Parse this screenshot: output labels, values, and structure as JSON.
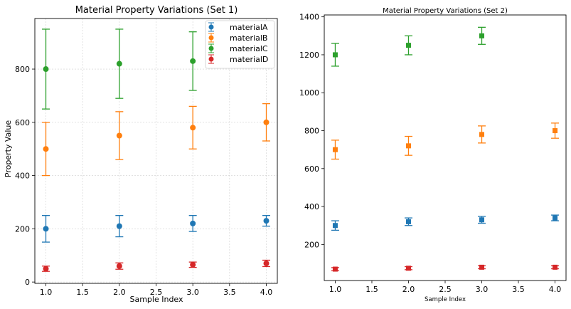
{
  "chart_data": [
    {
      "type": "scatter",
      "title": "Material Property Variations (Set 1)",
      "xlabel": "Sample Index",
      "ylabel": "Property Value",
      "xlim": [
        0.85,
        4.15
      ],
      "ylim": [
        -5,
        990
      ],
      "xticks": [
        "1.0",
        "1.5",
        "2.0",
        "2.5",
        "3.0",
        "3.5",
        "4.0"
      ],
      "xtick_values": [
        1.0,
        1.5,
        2.0,
        2.5,
        3.0,
        3.5,
        4.0
      ],
      "yticks": [
        "0",
        "200",
        "400",
        "600",
        "800"
      ],
      "ytick_values": [
        0,
        200,
        400,
        600,
        800
      ],
      "grid": true,
      "legend": "top-right",
      "marker": "circle",
      "series": [
        {
          "name": "materialA",
          "color": "#1f77b4",
          "x": [
            1,
            2,
            3,
            4
          ],
          "y": [
            200,
            210,
            220,
            230
          ],
          "err": [
            50,
            40,
            30,
            20
          ]
        },
        {
          "name": "materialB",
          "color": "#ff7f0e",
          "x": [
            1,
            2,
            3
          ],
          "y": [
            500,
            550,
            580
          ],
          "err": [
            100,
            90,
            80
          ]
        },
        {
          "name": "materialC",
          "color": "#2ca02c",
          "x": [
            1,
            2,
            3
          ],
          "y": [
            800,
            820,
            830
          ],
          "err": [
            150,
            130,
            110
          ]
        },
        {
          "name": "materialD",
          "color": "#d62728",
          "x": [
            1,
            2,
            3,
            4
          ],
          "y": [
            50,
            60,
            65,
            70
          ],
          "err": [
            10,
            12,
            10,
            12
          ]
        },
        {
          "name": "",
          "color": "#ff7f0e",
          "x": [
            4
          ],
          "y": [
            600
          ],
          "err": [
            70
          ]
        }
      ]
    },
    {
      "type": "scatter",
      "title": "Material Property Variations (Set 2)",
      "xlabel": "Sample Index",
      "ylabel": "",
      "xlim": [
        0.85,
        4.15
      ],
      "ylim": [
        10,
        1410
      ],
      "xticks": [
        "1.0",
        "1.5",
        "2.0",
        "2.5",
        "3.0",
        "3.5",
        "4.0"
      ],
      "xtick_values": [
        1.0,
        1.5,
        2.0,
        2.5,
        3.0,
        3.5,
        4.0
      ],
      "yticks": [
        "200",
        "400",
        "600",
        "800",
        "1000",
        "1200",
        "1400"
      ],
      "ytick_values": [
        200,
        400,
        600,
        800,
        1000,
        1200,
        1400
      ],
      "grid": false,
      "legend": "none",
      "marker": "square",
      "series": [
        {
          "color": "#1f77b4",
          "x": [
            1,
            2,
            3,
            4
          ],
          "y": [
            300,
            320,
            330,
            340
          ],
          "err": [
            25,
            20,
            18,
            15
          ]
        },
        {
          "color": "#ff7f0e",
          "x": [
            1,
            2,
            3,
            4
          ],
          "y": [
            700,
            720,
            780,
            800
          ],
          "err": [
            50,
            50,
            45,
            40
          ]
        },
        {
          "color": "#2ca02c",
          "x": [
            1,
            2,
            3
          ],
          "y": [
            1200,
            1250,
            1300
          ],
          "err": [
            60,
            50,
            45
          ]
        },
        {
          "color": "#d62728",
          "x": [
            1,
            2,
            3,
            4
          ],
          "y": [
            70,
            75,
            80,
            80
          ],
          "err": [
            8,
            8,
            8,
            8
          ]
        }
      ]
    }
  ]
}
